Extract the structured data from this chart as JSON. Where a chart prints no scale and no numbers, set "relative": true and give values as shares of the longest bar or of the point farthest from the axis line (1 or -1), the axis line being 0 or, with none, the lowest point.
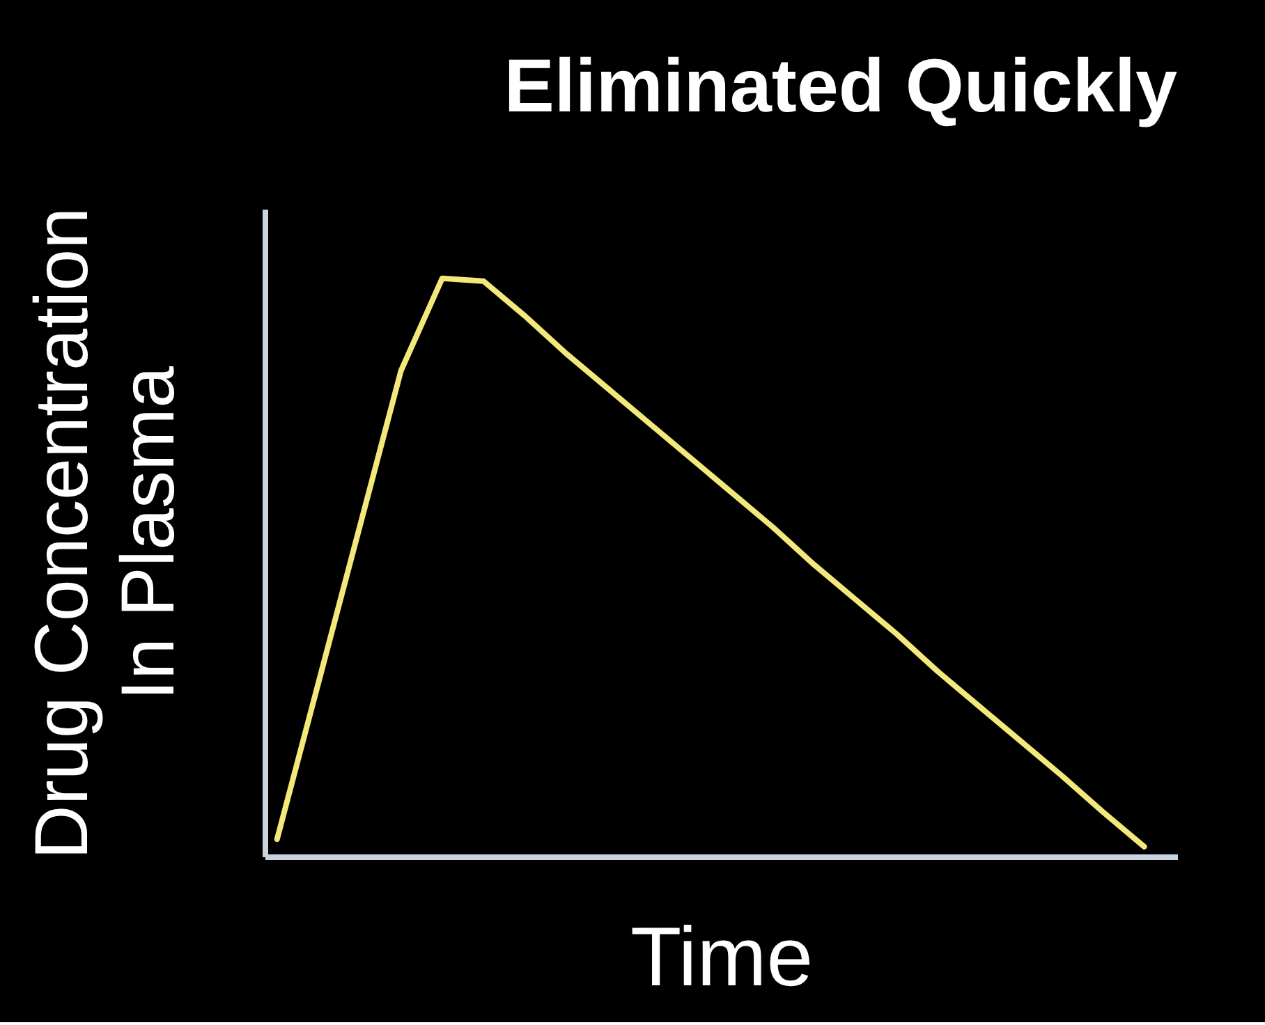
{
  "chart_data": {
    "type": "line",
    "title": "Eliminated Quickly",
    "xlabel": "Time",
    "ylabel": "Drug  Concentration\nIn Plasma",
    "relative": true,
    "categories": [
      null,
      null,
      null,
      null,
      null,
      null,
      null,
      null,
      null,
      null,
      null,
      null,
      null,
      null,
      null,
      null,
      null,
      null,
      null,
      null,
      null,
      null
    ],
    "series": [
      {
        "color": "#f3e97a",
        "values": [
          0.03,
          0.3,
          0.57,
          0.84,
          1.0,
          0.995,
          0.935,
          0.87,
          0.81,
          0.75,
          0.69,
          0.63,
          0.57,
          0.505,
          0.445,
          0.385,
          0.32,
          0.26,
          0.2,
          0.14,
          0.077,
          0.017
        ]
      }
    ]
  }
}
